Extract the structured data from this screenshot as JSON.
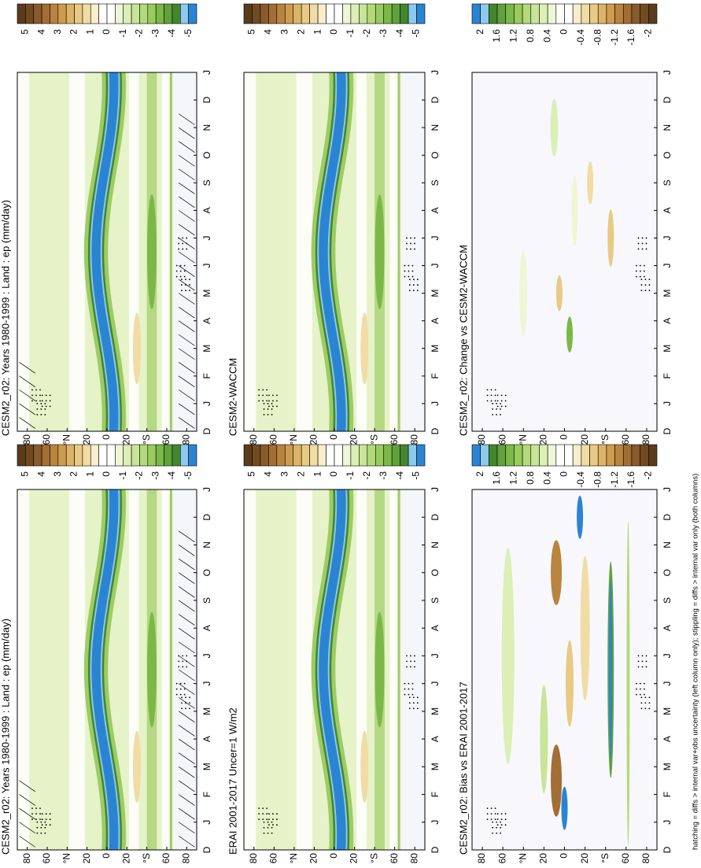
{
  "panels": [
    {
      "title": "CESM2_r02: Years 1980-1999 : Land : ep (mm/day)",
      "colorbar": {
        "labels": [
          "5",
          "4",
          "3",
          "2",
          "1",
          "0",
          "-1",
          "-2",
          "-3",
          "-4",
          "-5"
        ],
        "colors": [
          "#5b3b1c",
          "#724a22",
          "#8a5a2a",
          "#a26e34",
          "#b8843e",
          "#cc9c50",
          "#dcb466",
          "#e8ca84",
          "#f0dca4",
          "#f8eecc",
          "#ffffff",
          "#ffffff",
          "#eef6d6",
          "#dcefb6",
          "#c8e598",
          "#b2da7a",
          "#98cc5e",
          "#7cb848",
          "#60a23a",
          "#44862e",
          "#8ccaf0",
          "#2a84d2"
        ]
      },
      "lat_labels": [
        "80",
        "60",
        "°N",
        "20",
        "0",
        "20",
        "°S",
        "60",
        "80"
      ],
      "month_labels": [
        "D",
        "J",
        "F",
        "M",
        "A",
        "M",
        "J",
        "J",
        "A",
        "S",
        "O",
        "N",
        "D",
        "J"
      ]
    },
    {
      "title": "CESM2-WACCM",
      "colorbar": {
        "labels": [
          "5",
          "4",
          "3",
          "2",
          "1",
          "0",
          "-1",
          "-2",
          "-3",
          "-4",
          "-5"
        ],
        "colors": [
          "#5b3b1c",
          "#724a22",
          "#8a5a2a",
          "#a26e34",
          "#b8843e",
          "#cc9c50",
          "#dcb466",
          "#e8ca84",
          "#f0dca4",
          "#f8eecc",
          "#ffffff",
          "#ffffff",
          "#eef6d6",
          "#dcefb6",
          "#c8e598",
          "#b2da7a",
          "#98cc5e",
          "#7cb848",
          "#60a23a",
          "#44862e",
          "#8ccaf0",
          "#2a84d2"
        ]
      },
      "lat_labels": [
        "80",
        "60",
        "°N",
        "20",
        "0",
        "20",
        "°S",
        "60",
        "80"
      ],
      "month_labels": [
        "D",
        "J",
        "F",
        "M",
        "A",
        "M",
        "J",
        "J",
        "A",
        "S",
        "O",
        "N",
        "D",
        "J"
      ]
    },
    {
      "title": "CESM2_r02: Change vs CESM2-WACCM",
      "colorbar": {
        "labels": [
          "2",
          "1.6",
          "1.2",
          "0.8",
          "0.4",
          "0",
          "-0.4",
          "-0.8",
          "-1.2",
          "-1.6",
          "-2"
        ],
        "colors": [
          "#2a84d2",
          "#8ccaf0",
          "#44862e",
          "#60a23a",
          "#7cb848",
          "#98cc5e",
          "#b2da7a",
          "#c8e598",
          "#dcefb6",
          "#eef6d6",
          "#ffffff",
          "#ffffff",
          "#f8eecc",
          "#f0dca4",
          "#e8ca84",
          "#dcb466",
          "#cc9c50",
          "#b8843e",
          "#a26e34",
          "#8a5a2a",
          "#724a22",
          "#5b3b1c"
        ]
      },
      "lat_labels": [
        "80",
        "60",
        "°N",
        "20",
        "0",
        "20",
        "°S",
        "60",
        "80"
      ],
      "month_labels": [
        "D",
        "J",
        "F",
        "M",
        "A",
        "M",
        "J",
        "J",
        "A",
        "S",
        "O",
        "N",
        "D",
        "J"
      ]
    },
    {
      "title": "CESM2_r02: Years 1980-1999 : Land : ep (mm/day)",
      "colorbar": {
        "labels": [
          "5",
          "4",
          "3",
          "2",
          "1",
          "0",
          "-1",
          "-2",
          "-3",
          "-4",
          "-5"
        ],
        "colors": [
          "#5b3b1c",
          "#724a22",
          "#8a5a2a",
          "#a26e34",
          "#b8843e",
          "#cc9c50",
          "#dcb466",
          "#e8ca84",
          "#f0dca4",
          "#f8eecc",
          "#ffffff",
          "#ffffff",
          "#eef6d6",
          "#dcefb6",
          "#c8e598",
          "#b2da7a",
          "#98cc5e",
          "#7cb848",
          "#60a23a",
          "#44862e",
          "#8ccaf0",
          "#2a84d2"
        ]
      },
      "lat_labels": [
        "80",
        "60",
        "°N",
        "20",
        "0",
        "20",
        "°S",
        "60",
        "80"
      ],
      "month_labels": [
        "D",
        "J",
        "F",
        "M",
        "A",
        "M",
        "J",
        "J",
        "A",
        "S",
        "O",
        "N",
        "D",
        "J"
      ]
    },
    {
      "title": "ERAI 2001-2017 Uncer=1 W/m2",
      "colorbar": {
        "labels": [
          "5",
          "4",
          "3",
          "2",
          "1",
          "0",
          "-1",
          "-2",
          "-3",
          "-4",
          "-5"
        ],
        "colors": [
          "#5b3b1c",
          "#724a22",
          "#8a5a2a",
          "#a26e34",
          "#b8843e",
          "#cc9c50",
          "#dcb466",
          "#e8ca84",
          "#f0dca4",
          "#f8eecc",
          "#ffffff",
          "#ffffff",
          "#eef6d6",
          "#dcefb6",
          "#c8e598",
          "#b2da7a",
          "#98cc5e",
          "#7cb848",
          "#60a23a",
          "#44862e",
          "#8ccaf0",
          "#2a84d2"
        ]
      },
      "lat_labels": [
        "80",
        "60",
        "°N",
        "20",
        "0",
        "20",
        "°S",
        "60",
        "80"
      ],
      "month_labels": [
        "D",
        "J",
        "F",
        "M",
        "A",
        "M",
        "J",
        "J",
        "A",
        "S",
        "O",
        "N",
        "D",
        "J"
      ]
    },
    {
      "title": "CESM2_r02: Bias vs ERAI 2001-2017",
      "colorbar": {
        "labels": [
          "2",
          "1.6",
          "1.2",
          "0.8",
          "0.4",
          "0",
          "-0.4",
          "-0.8",
          "-1.2",
          "-1.6",
          "-2"
        ],
        "colors": [
          "#2a84d2",
          "#8ccaf0",
          "#44862e",
          "#60a23a",
          "#7cb848",
          "#98cc5e",
          "#b2da7a",
          "#c8e598",
          "#dcefb6",
          "#eef6d6",
          "#ffffff",
          "#ffffff",
          "#f8eecc",
          "#f0dca4",
          "#e8ca84",
          "#dcb466",
          "#cc9c50",
          "#b8843e",
          "#a26e34",
          "#8a5a2a",
          "#724a22",
          "#5b3b1c"
        ]
      },
      "lat_labels": [
        "80",
        "60",
        "°N",
        "20",
        "0",
        "20",
        "°S",
        "60",
        "80"
      ],
      "month_labels": [
        "D",
        "J",
        "F",
        "M",
        "A",
        "M",
        "J",
        "J",
        "A",
        "S",
        "O",
        "N",
        "D",
        "J"
      ]
    }
  ],
  "footer": "hatching = diffs > internal var+obs uncertainty (left column only); stippling = diffs > internal var only (both columns)"
}
